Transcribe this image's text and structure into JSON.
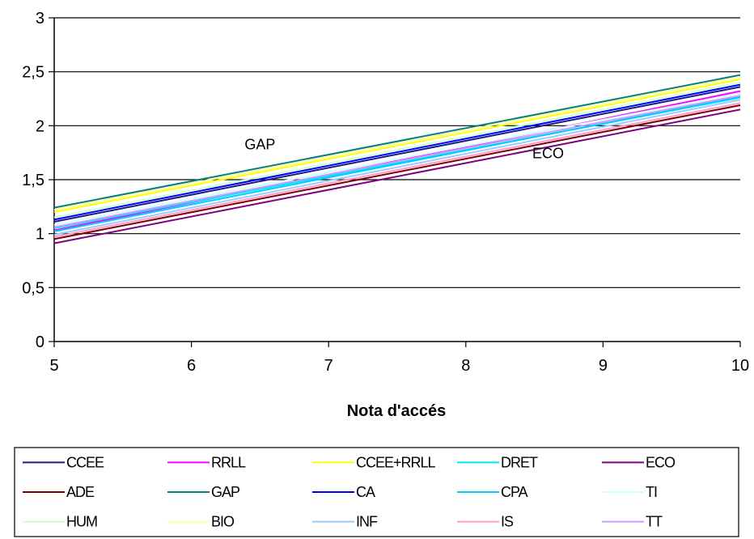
{
  "chart_data": {
    "type": "line",
    "title": "",
    "xlabel": "Nota d'accés",
    "ylabel": "",
    "xlim": [
      5,
      10
    ],
    "ylim": [
      0,
      3
    ],
    "x_ticks": [
      "5",
      "6",
      "7",
      "8",
      "9",
      "10"
    ],
    "y_ticks": [
      "0",
      "0,5",
      "1",
      "1,5",
      "2",
      "2,5",
      "3"
    ],
    "grid": "horizontal",
    "legend_position": "bottom",
    "annotations": [
      {
        "text": "GAP",
        "x": 6.5,
        "y": 1.78
      },
      {
        "text": "ECO",
        "x": 8.6,
        "y": 1.7
      }
    ],
    "series": [
      {
        "name": "CCEE",
        "color": "#1a1a80",
        "x": [
          5,
          10
        ],
        "values": [
          1.11,
          2.36
        ]
      },
      {
        "name": "RRLL",
        "color": "#ff00ff",
        "x": [
          5,
          10
        ],
        "values": [
          1.03,
          2.32
        ]
      },
      {
        "name": "CCEE+RRLL",
        "color": "#ffff00",
        "x": [
          5,
          10
        ],
        "values": [
          1.2,
          2.43
        ]
      },
      {
        "name": "DRET",
        "color": "#00e5ff",
        "x": [
          5,
          10
        ],
        "values": [
          1.05,
          2.26
        ]
      },
      {
        "name": "ECO",
        "color": "#800080",
        "x": [
          5,
          10
        ],
        "values": [
          0.91,
          2.15
        ]
      },
      {
        "name": "ADE",
        "color": "#800000",
        "x": [
          5,
          10
        ],
        "values": [
          0.95,
          2.19
        ]
      },
      {
        "name": "GAP",
        "color": "#008080",
        "x": [
          5,
          10
        ],
        "values": [
          1.24,
          2.47
        ]
      },
      {
        "name": "CA",
        "color": "#0000ff",
        "x": [
          5,
          10
        ],
        "values": [
          1.13,
          2.38
        ]
      },
      {
        "name": "CPA",
        "color": "#00ccff",
        "x": [
          5,
          10
        ],
        "values": [
          1.02,
          2.27
        ]
      },
      {
        "name": "TI",
        "color": "#ccffff",
        "x": [
          5,
          10
        ],
        "values": [
          1.08,
          2.3
        ]
      },
      {
        "name": "HUM",
        "color": "#ccffcc",
        "x": [
          5,
          10
        ],
        "values": [
          1.15,
          2.4
        ]
      },
      {
        "name": "BIO",
        "color": "#ffff99",
        "x": [
          5,
          10
        ],
        "values": [
          1.22,
          2.45
        ]
      },
      {
        "name": "INF",
        "color": "#99ccff",
        "x": [
          5,
          10
        ],
        "values": [
          0.99,
          2.24
        ]
      },
      {
        "name": "IS",
        "color": "#ff99cc",
        "x": [
          5,
          10
        ],
        "values": [
          0.97,
          2.21
        ]
      },
      {
        "name": "TT",
        "color": "#cc99ff",
        "x": [
          5,
          10
        ],
        "values": [
          1.06,
          2.28
        ]
      }
    ]
  }
}
